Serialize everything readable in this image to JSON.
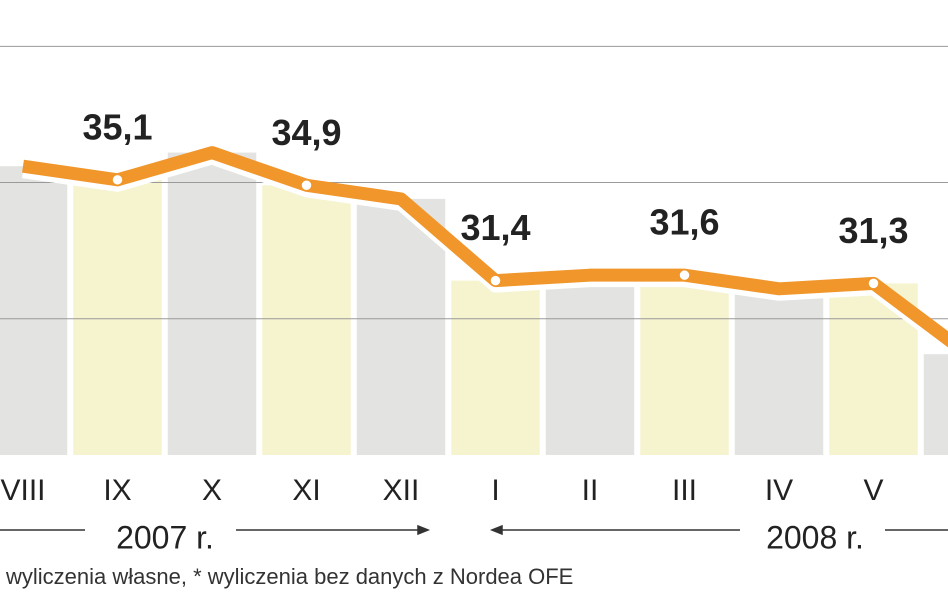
{
  "chart_data": {
    "type": "line",
    "categories": [
      "VIII",
      "IX",
      "X",
      "XI",
      "XII",
      "I",
      "II",
      "III",
      "IV",
      "V",
      null
    ],
    "values": [
      35.6,
      35.1,
      36.1,
      34.9,
      34.4,
      31.4,
      31.6,
      31.6,
      31.1,
      31.3,
      28.7
    ],
    "value_labels": [
      null,
      "35,1",
      null,
      "34,9",
      null,
      "31,4",
      null,
      "31,6",
      null,
      "31,3",
      null
    ],
    "color": "#f0962a",
    "bar_colors": [
      "#e3e3e1",
      "#f6f3cf"
    ],
    "ylim": [
      25,
      41.7
    ],
    "yticks": [
      30,
      35,
      40
    ],
    "grid": true,
    "year_labels": [
      "2007 r.",
      "2008 r."
    ],
    "footnote": "wyliczenia własne, * wyliczenia bez danych z Nordea OFE"
  }
}
